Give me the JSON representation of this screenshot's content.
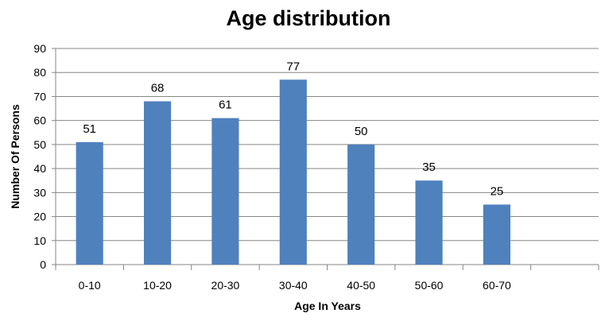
{
  "chart_data": {
    "type": "bar",
    "title": "Age distribution",
    "xlabel": "Age In Years",
    "ylabel": "Number Of Persons",
    "categories": [
      "0-10",
      "10-20",
      "20-30",
      "30-40",
      "40-50",
      "50-60",
      "60-70",
      ""
    ],
    "values": [
      51,
      68,
      61,
      77,
      50,
      35,
      25,
      null
    ],
    "ylim": [
      0,
      90
    ],
    "yticks": [
      0,
      10,
      20,
      30,
      40,
      50,
      60,
      70,
      80,
      90
    ],
    "grid": true,
    "legend": "none",
    "bar_color": "#4F81BD",
    "grid_color": "#868686"
  }
}
